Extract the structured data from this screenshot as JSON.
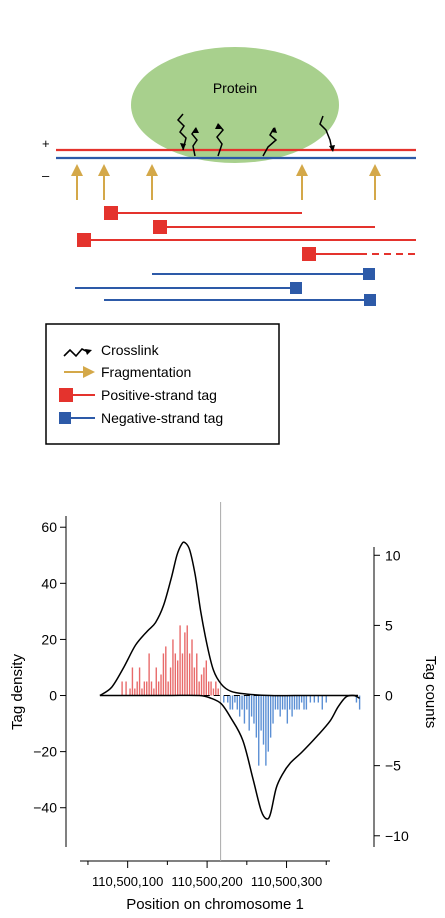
{
  "diagram": {
    "protein_label": "Protein",
    "plus_strand_label": "+",
    "minus_strand_label": "–",
    "colors": {
      "protein": "#a8d08d",
      "positive_strand": "#e4332d",
      "negative_strand": "#2d5aa8",
      "fragmentation": "#d4a849",
      "crosslink": "#000000"
    }
  },
  "legend": {
    "items": [
      {
        "label": "Crosslink",
        "icon": "crosslink-zigzag-icon"
      },
      {
        "label": "Fragmentation",
        "icon": "fragmentation-arrow-icon"
      },
      {
        "label": "Positive-strand tag",
        "icon": "positive-tag-icon"
      },
      {
        "label": "Negative-strand tag",
        "icon": "negative-tag-icon"
      }
    ]
  },
  "chart_data": {
    "type": "line",
    "xlabel": "Position on chromosome 1",
    "ylabel_left": "Tag density",
    "ylabel_right": "Tag counts",
    "x_ticks": [
      {
        "value": 110500100,
        "label": "110,500,100"
      },
      {
        "value": 110500200,
        "label": "110,500,200"
      },
      {
        "value": 110500300,
        "label": "110,500,300"
      }
    ],
    "y_left_ticks": [
      "60",
      "40",
      "20",
      "0",
      "−20",
      "−40"
    ],
    "y_left_values": [
      60,
      40,
      20,
      0,
      -20,
      -40
    ],
    "y_left_range": [
      -54,
      64
    ],
    "y_right_ticks": [
      "10",
      "5",
      "0",
      "−5",
      "−10"
    ],
    "y_right_values": [
      10,
      5,
      0,
      -5,
      -10
    ],
    "y_right_range": [
      -10.8,
      12.8
    ],
    "x_range": [
      110500040,
      110500395
    ],
    "vertical_reference_x": 110500217,
    "series": [
      {
        "role": "positive density",
        "color": "#000000",
        "x": [
          110500065,
          110500080,
          110500095,
          110500110,
          110500125,
          110500135,
          110500145,
          110500155,
          110500162,
          110500168,
          110500172,
          110500178,
          110500185,
          110500192,
          110500200,
          110500208,
          110500218,
          110500230,
          110500250,
          110500280,
          110500310,
          110500340,
          110500370,
          110500390
        ],
        "y": [
          0,
          3,
          10,
          18,
          23,
          26,
          32,
          42,
          50,
          54,
          54.5,
          52,
          43,
          30,
          18,
          9,
          4,
          1.5,
          0.5,
          0,
          0,
          0,
          0,
          0
        ]
      },
      {
        "role": "negative density",
        "color": "#000000",
        "x": [
          110500065,
          110500100,
          110500150,
          110500190,
          110500205,
          110500218,
          110500230,
          110500245,
          110500258,
          110500268,
          110500275,
          110500280,
          110500287,
          110500295,
          110500305,
          110500320,
          110500340,
          110500355,
          110500365,
          110500375,
          110500385,
          110500392
        ],
        "y": [
          0,
          0,
          0,
          0,
          -1,
          -3,
          -8,
          -16,
          -30,
          -41,
          -44,
          -42,
          -33,
          -28,
          -24,
          -20,
          -14,
          -9,
          -4,
          -0.5,
          0,
          -1
        ]
      }
    ],
    "bars_positive": {
      "color": "#e86a6a",
      "x": [
        110500093,
        110500098,
        110500103,
        110500106,
        110500109,
        110500112,
        110500115,
        110500118,
        110500121,
        110500124,
        110500127,
        110500130,
        110500133,
        110500136,
        110500139,
        110500142,
        110500145,
        110500148,
        110500151,
        110500154,
        110500157,
        110500160,
        110500163,
        110500166,
        110500169,
        110500172,
        110500175,
        110500178,
        110500181,
        110500184,
        110500187,
        110500190,
        110500193,
        110500196,
        110500199,
        110500202,
        110500205,
        110500208,
        110500211,
        110500214
      ],
      "counts": [
        1,
        1,
        0.5,
        2,
        0.5,
        1,
        2,
        0.5,
        1,
        1,
        3,
        1,
        0.5,
        2,
        1,
        1.5,
        3,
        3.5,
        1,
        2,
        4,
        3,
        2.5,
        5,
        3,
        4.5,
        5,
        3,
        4,
        2,
        3,
        1,
        1.5,
        2,
        2.5,
        1,
        1,
        0.5,
        1,
        0.5
      ]
    },
    "bars_negative": {
      "color": "#5b8fd4",
      "x": [
        110500221,
        110500226,
        110500229,
        110500232,
        110500235,
        110500238,
        110500241,
        110500244,
        110500247,
        110500250,
        110500253,
        110500256,
        110500259,
        110500262,
        110500265,
        110500268,
        110500271,
        110500274,
        110500277,
        110500280,
        110500283,
        110500286,
        110500289,
        110500292,
        110500295,
        110500298,
        110500301,
        110500304,
        110500307,
        110500310,
        110500313,
        110500316,
        110500319,
        110500322,
        110500325,
        110500330,
        110500335,
        110500340,
        110500345,
        110500350,
        110500388,
        110500392
      ],
      "counts": [
        -0.5,
        -0.5,
        -1,
        -1,
        -0.5,
        -1,
        -1.5,
        -1,
        -2,
        -1,
        -2.5,
        -1.5,
        -2,
        -3,
        -5,
        -2.5,
        -3.5,
        -5,
        -4,
        -3,
        -2,
        -1,
        -1,
        -1.5,
        -1,
        -1,
        -2,
        -1,
        -1.5,
        -1,
        -1,
        -1,
        -0.5,
        -1,
        -1,
        -0.5,
        -0.5,
        -0.5,
        -1,
        -0.5,
        -0.5,
        -1
      ]
    }
  }
}
